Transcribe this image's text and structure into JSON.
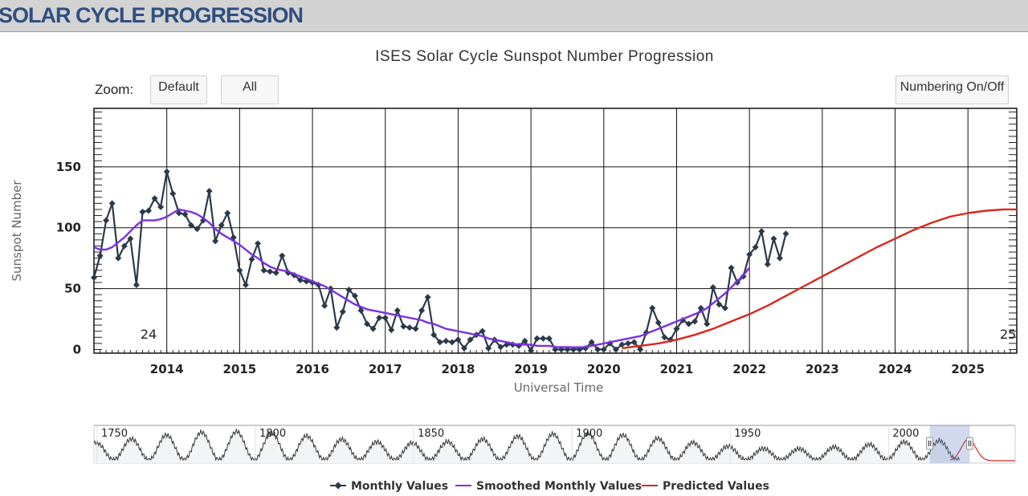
{
  "header": {
    "title": "SOLAR CYCLE PROGRESSION"
  },
  "controls": {
    "zoom_label": "Zoom:",
    "default_label": "Default",
    "all_label": "All",
    "numbering_label": "Numbering On/Off"
  },
  "chart_data": {
    "type": "line",
    "title": "ISES Solar Cycle Sunspot Number Progression",
    "xlabel": "Universal Time",
    "ylabel": "Sunspot Number",
    "xlim": [
      2013.0,
      2025.67
    ],
    "ylim": [
      -3,
      198
    ],
    "y_ticks": [
      0,
      50,
      100,
      150
    ],
    "x_ticks": [
      2014,
      2015,
      2016,
      2017,
      2018,
      2019,
      2020,
      2021,
      2022,
      2023,
      2024,
      2025
    ],
    "cycle_labels": [
      {
        "text": "24",
        "x": 2013.75,
        "y": 12
      },
      {
        "text": "25",
        "x": 2025.55,
        "y": 12
      }
    ],
    "series": [
      {
        "name": "Monthly Values",
        "color": "#2b3a4a",
        "marker": "diamond",
        "start": 2013.0,
        "step": 0.08333,
        "values": [
          59,
          77,
          106,
          120,
          75,
          85,
          91,
          53,
          113,
          114,
          124,
          117,
          146,
          128,
          112,
          111,
          102,
          99,
          106,
          130,
          89,
          102,
          112,
          92,
          65,
          53,
          74,
          87,
          65,
          64,
          63,
          77,
          63,
          61,
          57,
          56,
          55,
          53,
          36,
          50,
          18,
          31,
          49,
          44,
          32,
          21,
          17,
          26,
          26,
          16,
          32,
          19,
          18,
          17,
          32,
          43,
          12,
          6,
          7,
          6,
          8,
          1,
          8,
          12,
          15,
          1,
          8,
          2,
          4,
          4,
          3,
          7,
          -1,
          9,
          9,
          9,
          0,
          0,
          0,
          0,
          0,
          1,
          6,
          0,
          0,
          5,
          0,
          4,
          5,
          6,
          0,
          14,
          34,
          22,
          10,
          8,
          17,
          24,
          21,
          23,
          34,
          21,
          51,
          37,
          34,
          67,
          55,
          60,
          78,
          84,
          97,
          70,
          91,
          75,
          95
        ]
      },
      {
        "name": "Smoothed Monthly Values",
        "color": "#7b2fe6",
        "start": 2013.0,
        "step": 0.08333,
        "values": [
          84,
          82,
          82,
          84,
          88,
          92,
          97,
          102,
          106,
          106,
          106,
          107,
          109,
          112,
          115,
          114,
          113,
          111,
          108,
          104,
          99,
          95,
          92,
          89,
          86,
          82,
          78,
          75,
          71,
          68,
          66,
          65,
          64,
          62,
          60,
          58,
          56,
          54,
          52,
          49,
          46,
          43,
          40,
          37,
          35,
          33,
          32,
          31,
          30,
          29,
          28,
          27,
          26,
          25,
          24,
          22,
          21,
          19,
          17,
          16,
          15,
          14,
          13,
          12,
          11,
          9,
          8,
          7,
          6,
          5,
          4,
          4,
          4,
          3,
          3,
          3,
          2,
          2,
          2,
          1.8,
          1.8,
          2,
          3,
          4,
          5,
          6,
          7,
          8,
          9,
          10,
          11,
          13,
          15,
          17,
          19,
          21,
          23,
          25,
          27,
          29,
          31,
          34,
          38,
          42,
          46,
          51,
          56,
          61,
          67
        ]
      },
      {
        "name": "Predicted Values",
        "color": "#d9261c",
        "x": [
          2020.25,
          2020.5,
          2020.75,
          2021.0,
          2021.25,
          2021.5,
          2021.75,
          2022.0,
          2022.25,
          2022.5,
          2022.75,
          2023.0,
          2023.25,
          2023.5,
          2023.75,
          2024.0,
          2024.25,
          2024.5,
          2024.75,
          2025.0,
          2025.25,
          2025.5,
          2025.67
        ],
        "values": [
          1,
          3,
          5,
          8,
          12,
          17,
          23,
          29,
          36,
          44,
          52,
          60,
          68,
          76,
          84,
          91,
          98,
          104,
          109,
          112,
          114,
          115,
          115
        ]
      }
    ],
    "navigator": {
      "tick_labels": [
        "1750",
        "1800",
        "1850",
        "1900",
        "1950",
        "2000"
      ],
      "selection": [
        2013.0,
        2025.67
      ]
    }
  }
}
